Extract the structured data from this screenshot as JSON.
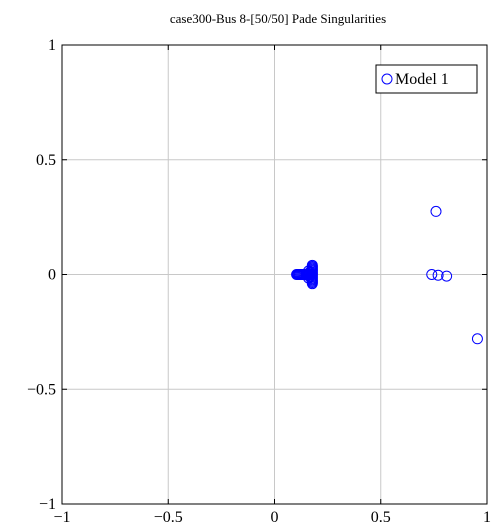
{
  "chart_data": {
    "type": "scatter",
    "title": "case300-Bus 8-[50/50] Pade Singularities",
    "xlabel": "",
    "ylabel": "",
    "xlim": [
      -1,
      1
    ],
    "ylim": [
      -1,
      1
    ],
    "xticks": [
      -1,
      -0.5,
      0,
      0.5,
      1
    ],
    "yticks": [
      -1,
      -0.5,
      0,
      0.5,
      1
    ],
    "xtick_labels": [
      "−1",
      "−0.5",
      "0",
      "0.5",
      "1"
    ],
    "ytick_labels": [
      "−1",
      "−0.5",
      "0",
      "0.5",
      "1"
    ],
    "grid": true,
    "legend_position": "top-right",
    "marker": "circle-open",
    "color": "#0000ff",
    "series": [
      {
        "name": "Model 1",
        "points": [
          [
            0.104,
            0.0
          ],
          [
            0.108,
            0.0
          ],
          [
            0.112,
            0.0
          ],
          [
            0.116,
            0.0
          ],
          [
            0.12,
            0.0
          ],
          [
            0.125,
            0.0
          ],
          [
            0.13,
            0.0
          ],
          [
            0.135,
            0.0
          ],
          [
            0.14,
            0.0
          ],
          [
            0.145,
            0.0
          ],
          [
            0.15,
            0.0
          ],
          [
            0.155,
            0.0
          ],
          [
            0.16,
            0.0
          ],
          [
            0.165,
            0.0
          ],
          [
            0.17,
            0.0
          ],
          [
            0.175,
            0.0
          ],
          [
            0.178,
            0.0
          ],
          [
            0.178,
            0.005
          ],
          [
            0.178,
            -0.005
          ],
          [
            0.178,
            0.01
          ],
          [
            0.178,
            -0.01
          ],
          [
            0.178,
            0.015
          ],
          [
            0.178,
            -0.015
          ],
          [
            0.178,
            0.02
          ],
          [
            0.178,
            -0.02
          ],
          [
            0.178,
            0.025
          ],
          [
            0.178,
            -0.025
          ],
          [
            0.178,
            0.03
          ],
          [
            0.178,
            -0.03
          ],
          [
            0.178,
            0.035
          ],
          [
            0.178,
            -0.035
          ],
          [
            0.178,
            0.04
          ],
          [
            0.178,
            -0.04
          ],
          [
            0.16,
            0.015
          ],
          [
            0.16,
            -0.015
          ],
          [
            0.165,
            0.01
          ],
          [
            0.165,
            -0.01
          ],
          [
            0.74,
            0.0
          ],
          [
            0.77,
            -0.003
          ],
          [
            0.81,
            -0.007
          ],
          [
            0.76,
            0.275
          ],
          [
            0.955,
            -0.28
          ]
        ]
      }
    ]
  }
}
